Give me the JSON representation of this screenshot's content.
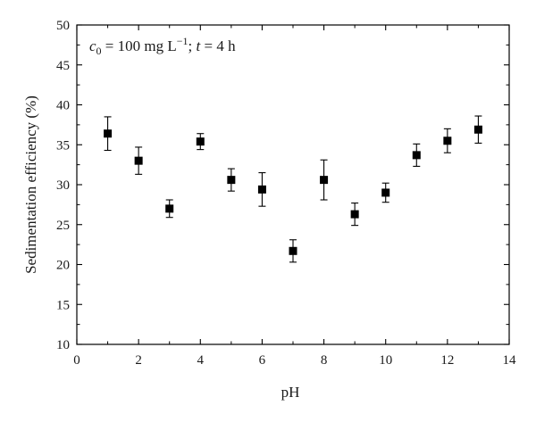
{
  "chart_data": {
    "type": "scatter",
    "title": "",
    "xlabel": "pH",
    "ylabel": "Sedimentation efficiency (%)",
    "xlim": [
      0,
      14
    ],
    "ylim": [
      10,
      50
    ],
    "xticks": [
      0,
      2,
      4,
      6,
      8,
      10,
      12,
      14
    ],
    "yticks": [
      10,
      15,
      20,
      25,
      30,
      35,
      40,
      45,
      50
    ],
    "grid": false,
    "legend": "none",
    "annotation": {
      "c_symbol": "c",
      "c_sub": "0",
      "c_rest": " = 100 mg L",
      "unit_exp": "−1",
      "sep": "; ",
      "t_symbol": "t",
      "t_rest": " = 4 h"
    },
    "marker_color": "#000000",
    "series": [
      {
        "x": [
          1,
          2,
          3,
          4,
          5,
          6,
          7,
          8,
          9,
          10,
          11,
          12,
          13
        ],
        "y": [
          36.4,
          33.0,
          27.0,
          35.4,
          30.6,
          29.4,
          21.7,
          30.6,
          26.3,
          29.0,
          33.7,
          35.5,
          36.9
        ],
        "err": [
          2.1,
          1.7,
          1.1,
          1.0,
          1.4,
          2.1,
          1.4,
          2.5,
          1.4,
          1.2,
          1.4,
          1.5,
          1.7
        ]
      }
    ]
  }
}
